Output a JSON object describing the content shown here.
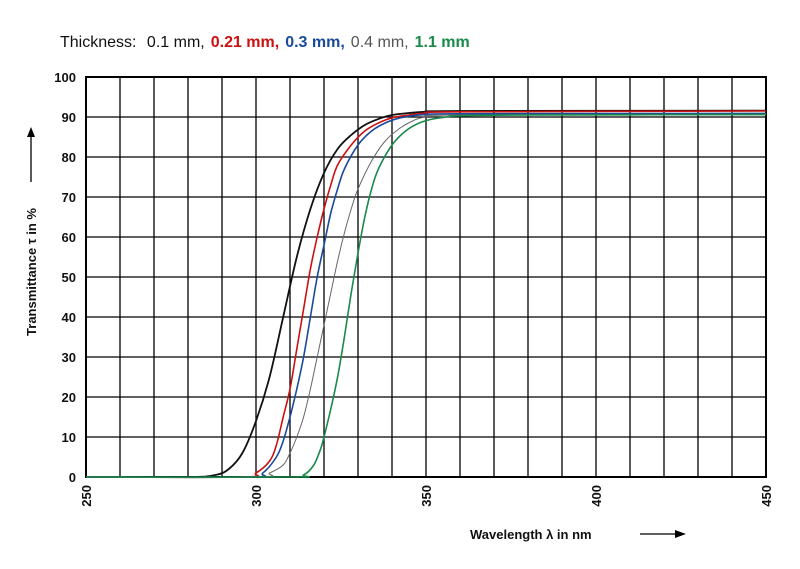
{
  "legend": {
    "prefix": "Thickness:",
    "items": [
      {
        "label": "0.1 mm,",
        "color": "#111111",
        "bold": false
      },
      {
        "label": "0.21 mm,",
        "color": "#cc1111",
        "bold": true
      },
      {
        "label": "0.3 mm,",
        "color": "#1a4a9a",
        "bold": true
      },
      {
        "label": "0.4 mm,",
        "color": "#555555",
        "bold": false
      },
      {
        "label": "1.1 mm",
        "color": "#1a8a4a",
        "bold": true
      }
    ]
  },
  "chart_data": {
    "type": "line",
    "xlabel": "Wavelength λ in nm",
    "ylabel": "Transmittance τ in %",
    "xlim": [
      250,
      450
    ],
    "ylim": [
      0,
      100
    ],
    "xticks": [
      250,
      300,
      350,
      400,
      450
    ],
    "yticks": [
      0,
      10,
      20,
      30,
      40,
      50,
      60,
      70,
      80,
      90,
      100
    ],
    "x_minor_step": 10,
    "grid": true,
    "series": [
      {
        "name": "0.1 mm",
        "color": "#111111",
        "width": 1.8,
        "points": [
          [
            250,
            0
          ],
          [
            280,
            0
          ],
          [
            288,
            0.5
          ],
          [
            292,
            2
          ],
          [
            296,
            6
          ],
          [
            300,
            14
          ],
          [
            304,
            25
          ],
          [
            308,
            40
          ],
          [
            312,
            55
          ],
          [
            316,
            67
          ],
          [
            320,
            76
          ],
          [
            324,
            82
          ],
          [
            328,
            85.5
          ],
          [
            332,
            88
          ],
          [
            336,
            89.5
          ],
          [
            340,
            90.5
          ],
          [
            345,
            91
          ],
          [
            350,
            91.3
          ],
          [
            360,
            91.5
          ],
          [
            450,
            91.6
          ]
        ]
      },
      {
        "name": "0.21 mm",
        "color": "#cc1111",
        "width": 1.6,
        "points": [
          [
            250,
            0
          ],
          [
            296,
            0
          ],
          [
            300,
            1
          ],
          [
            304,
            4
          ],
          [
            306,
            8
          ],
          [
            308,
            15
          ],
          [
            310,
            22
          ],
          [
            312,
            32
          ],
          [
            314,
            42
          ],
          [
            316,
            52
          ],
          [
            318,
            60
          ],
          [
            320,
            67
          ],
          [
            322,
            73
          ],
          [
            324,
            78
          ],
          [
            328,
            83
          ],
          [
            332,
            86.5
          ],
          [
            336,
            88.5
          ],
          [
            340,
            89.8
          ],
          [
            345,
            90.5
          ],
          [
            350,
            91
          ],
          [
            360,
            91.3
          ],
          [
            450,
            91.5
          ]
        ]
      },
      {
        "name": "0.3 mm",
        "color": "#1a4a9a",
        "width": 1.6,
        "points": [
          [
            250,
            0
          ],
          [
            298,
            0
          ],
          [
            302,
            1
          ],
          [
            306,
            5
          ],
          [
            308,
            9
          ],
          [
            310,
            15
          ],
          [
            312,
            22
          ],
          [
            314,
            30
          ],
          [
            316,
            40
          ],
          [
            318,
            50
          ],
          [
            320,
            58
          ],
          [
            322,
            66
          ],
          [
            324,
            72
          ],
          [
            326,
            77
          ],
          [
            330,
            83
          ],
          [
            334,
            86.5
          ],
          [
            338,
            88.5
          ],
          [
            342,
            89.7
          ],
          [
            346,
            90.3
          ],
          [
            350,
            90.6
          ],
          [
            360,
            90.8
          ],
          [
            450,
            90.9
          ]
        ]
      },
      {
        "name": "0.4 mm",
        "color": "#666666",
        "width": 1.0,
        "points": [
          [
            250,
            0
          ],
          [
            300,
            0
          ],
          [
            304,
            1
          ],
          [
            308,
            3
          ],
          [
            310,
            6
          ],
          [
            312,
            10
          ],
          [
            314,
            15
          ],
          [
            316,
            22
          ],
          [
            318,
            30
          ],
          [
            320,
            38
          ],
          [
            322,
            46
          ],
          [
            324,
            54
          ],
          [
            326,
            61
          ],
          [
            328,
            67
          ],
          [
            330,
            72
          ],
          [
            334,
            79
          ],
          [
            338,
            84
          ],
          [
            342,
            87
          ],
          [
            346,
            89
          ],
          [
            350,
            90
          ],
          [
            360,
            90.5
          ],
          [
            450,
            90.7
          ]
        ]
      },
      {
        "name": "1.1 mm",
        "color": "#1a8a4a",
        "width": 1.6,
        "points": [
          [
            250,
            0
          ],
          [
            310,
            0
          ],
          [
            314,
            0.5
          ],
          [
            317,
            3
          ],
          [
            319,
            7
          ],
          [
            320,
            10
          ],
          [
            322,
            17
          ],
          [
            324,
            25
          ],
          [
            326,
            35
          ],
          [
            328,
            46
          ],
          [
            330,
            56
          ],
          [
            332,
            65
          ],
          [
            334,
            72
          ],
          [
            336,
            77
          ],
          [
            340,
            83
          ],
          [
            344,
            86.5
          ],
          [
            348,
            88.5
          ],
          [
            352,
            89.5
          ],
          [
            356,
            90
          ],
          [
            360,
            90.3
          ],
          [
            380,
            90.5
          ],
          [
            450,
            90.6
          ]
        ]
      }
    ]
  }
}
